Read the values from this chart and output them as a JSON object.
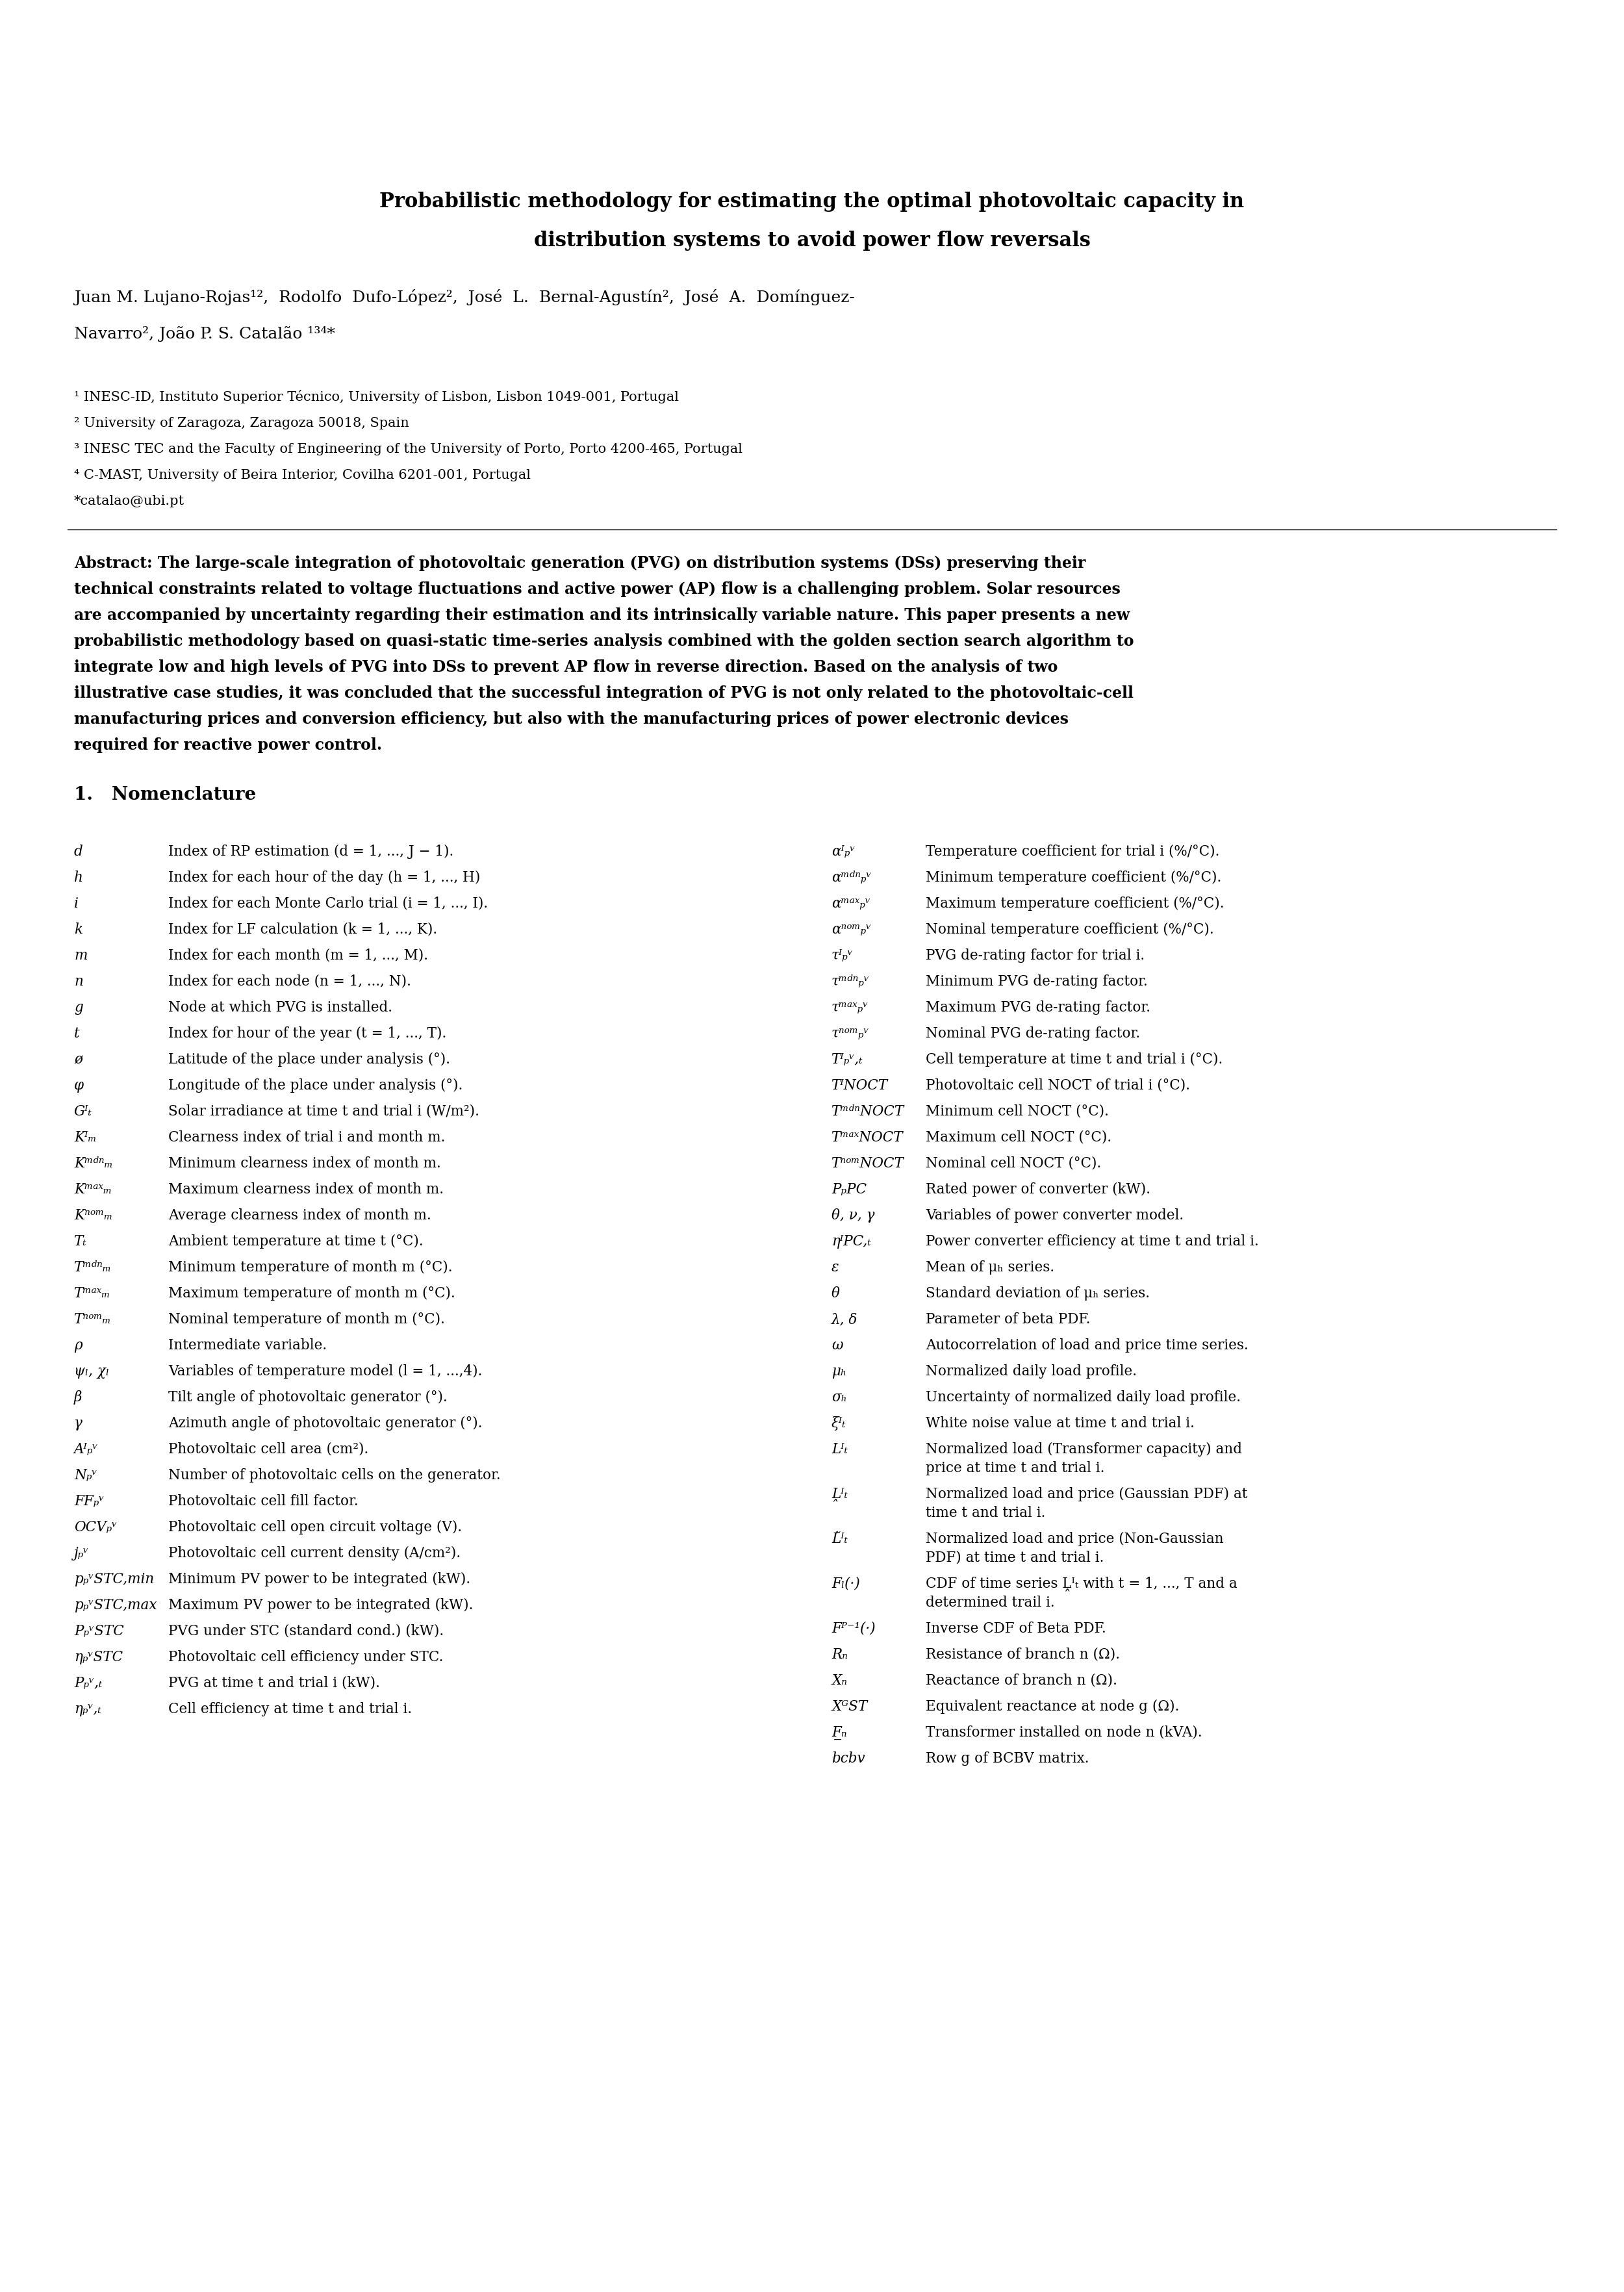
{
  "title_line1": "Probabilistic methodology for estimating the optimal photovoltaic capacity in",
  "title_line2": "distribution systems to avoid power flow reversals",
  "author_line1": "Juan M. Lujano-Rojas¹²,  Rodolfo  Dufo-López²,  José  L.  Bernal-Agustín²,  José  A.  Domínguez-",
  "author_line2": "Navarro², João P. S. Catalão ¹³⁴*",
  "affiliations": [
    "¹ INESC-ID, Instituto Superior Técnico, University of Lisbon, Lisbon 1049-001, Portugal",
    "² University of Zaragoza, Zaragoza 50018, Spain",
    "³ INESC TEC and the Faculty of Engineering of the University of Porto, Porto 4200-465, Portugal",
    "⁴ C-MAST, University of Beira Interior, Covilha 6201-001, Portugal",
    "*catalao@ubi.pt"
  ],
  "abstract_lines": [
    "Abstract: The large-scale integration of photovoltaic generation (PVG) on distribution systems (DSs) preserving their",
    "technical constraints related to voltage fluctuations and active power (AP) flow is a challenging problem. Solar resources",
    "are accompanied by uncertainty regarding their estimation and its intrinsically variable nature. This paper presents a new",
    "probabilistic methodology based on quasi-static time-series analysis combined with the golden section search algorithm to",
    "integrate low and high levels of PVG into DSs to prevent AP flow in reverse direction. Based on the analysis of two",
    "illustrative case studies, it was concluded that the successful integration of PVG is not only related to the photovoltaic-cell",
    "manufacturing prices and conversion efficiency, but also with the manufacturing prices of power electronic devices",
    "required for reactive power control."
  ],
  "section_title": "1.   Nomenclature",
  "left_vars": [
    "d",
    "h",
    "i",
    "k",
    "m",
    "n",
    "g",
    "t",
    "ø",
    "φ",
    "Gᴵₜ",
    "Kᴵₘ",
    "Kᵐᵈⁿₘ",
    "Kᵐᵃˣₘ",
    "Kⁿᵒᵐₘ",
    "Tₜ",
    "Tᵐᵈⁿₘ",
    "Tᵐᵃˣₘ",
    "Tⁿᵒᵐₘ",
    "ρ",
    "ψₗ, χₗ",
    "β",
    "γ",
    "Aᴵₚᵛ",
    "Nₚᵛ",
    "FFₚᵛ",
    "OCVₚᵛ",
    "jₚᵛ",
    "pₚᵛSTC,min",
    "pₚᵛSTC,max",
    "PₚᵛSTC",
    "ηₚᵛSTC",
    "Pₚᵛ,ₜ",
    "ηₚᵛ,ₜ"
  ],
  "left_descs": [
    "Index of RP estimation (d = 1, ..., J − 1).",
    "Index for each hour of the day (h = 1, ..., H)",
    "Index for each Monte Carlo trial (i = 1, ..., I).",
    "Index for LF calculation (k = 1, ..., K).",
    "Index for each month (m = 1, ..., M).",
    "Index for each node (n = 1, ..., N).",
    "Node at which PVG is installed.",
    "Index for hour of the year (t = 1, ..., T).",
    "Latitude of the place under analysis (°).",
    "Longitude of the place under analysis (°).",
    "Solar irradiance at time t and trial i (W/m²).",
    "Clearness index of trial i and month m.",
    "Minimum clearness index of month m.",
    "Maximum clearness index of month m.",
    "Average clearness index of month m.",
    "Ambient temperature at time t (°C).",
    "Minimum temperature of month m (°C).",
    "Maximum temperature of month m (°C).",
    "Nominal temperature of month m (°C).",
    "Intermediate variable.",
    "Variables of temperature model (l = 1, ...,4).",
    "Tilt angle of photovoltaic generator (°).",
    "Azimuth angle of photovoltaic generator (°).",
    "Photovoltaic cell area (cm²).",
    "Number of photovoltaic cells on the generator.",
    "Photovoltaic cell fill factor.",
    "Photovoltaic cell open circuit voltage (V).",
    "Photovoltaic cell current density (A/cm²).",
    "Minimum PV power to be integrated (kW).",
    "Maximum PV power to be integrated (kW).",
    "PVG under STC (standard cond.) (kW).",
    "Photovoltaic cell efficiency under STC.",
    "PVG at time t and trial i (kW).",
    "Cell efficiency at time t and trial i."
  ],
  "right_vars": [
    "αᴵₚᵛ",
    "αᵐᵈⁿₚᵛ",
    "αᵐᵃˣₚᵛ",
    "αⁿᵒᵐₚᵛ",
    "τᴵₚᵛ",
    "τᵐᵈⁿₚᵛ",
    "τᵐᵃˣₚᵛ",
    "τⁿᵒᵐₚᵛ",
    "Tᴵₚᵛ,ₜ",
    "TᴵNOCT",
    "TᵐᵈⁿNOCT",
    "TᵐᵃˣNOCT",
    "TⁿᵒᵐNOCT",
    "PₚPC",
    "θ, ν, γ",
    "ηᴵPC,ₜ",
    "ε",
    "θ",
    "λ, δ",
    "ω",
    "μₕ",
    "σₕ",
    "ξᴵₜ",
    "Lᴵₜ",
    "Ḽᴵₜ",
    "L̃ᴵₜ",
    "Fₗ(·)",
    "Fᴾ⁻¹(·)",
    "Rₙ",
    "Xₙ",
    "XᴳST",
    "F̲ₙ",
    "bcbv"
  ],
  "right_descs": [
    "Temperature coefficient for trial i (%/°C).",
    "Minimum temperature coefficient (%/°C).",
    "Maximum temperature coefficient (%/°C).",
    "Nominal temperature coefficient (%/°C).",
    "PVG de-rating factor for trial i.",
    "Minimum PVG de-rating factor.",
    "Maximum PVG de-rating factor.",
    "Nominal PVG de-rating factor.",
    "Cell temperature at time t and trial i (°C).",
    "Photovoltaic cell NOCT of trial i (°C).",
    "Minimum cell NOCT (°C).",
    "Maximum cell NOCT (°C).",
    "Nominal cell NOCT (°C).",
    "Rated power of converter (kW).",
    "Variables of power converter model.",
    "Power converter efficiency at time t and trial i.",
    "Mean of μₕ series.",
    "Standard deviation of μₕ series.",
    "Parameter of beta PDF.",
    "Autocorrelation of load and price time series.",
    "Normalized daily load profile.",
    "Uncertainty of normalized daily load profile.",
    "White noise value at time t and trial i.",
    "Normalized load (Transformer capacity) and\nprice at time t and trial i.",
    "Normalized load and price (Gaussian PDF) at\ntime t and trial i.",
    "Normalized load and price (Non-Gaussian\nPDF) at time t and trial i.",
    "CDF of time series Ḽᴵₜ with t = 1, ..., T and a\ndetermined trail i.",
    "Inverse CDF of Beta PDF.",
    "Resistance of branch n (Ω).",
    "Reactance of branch n (Ω).",
    "Equivalent reactance at node g (Ω).",
    "Transformer installed on node n (kVA).",
    "Row g of BCBV matrix."
  ],
  "background_color": "#ffffff",
  "text_color": "#000000"
}
